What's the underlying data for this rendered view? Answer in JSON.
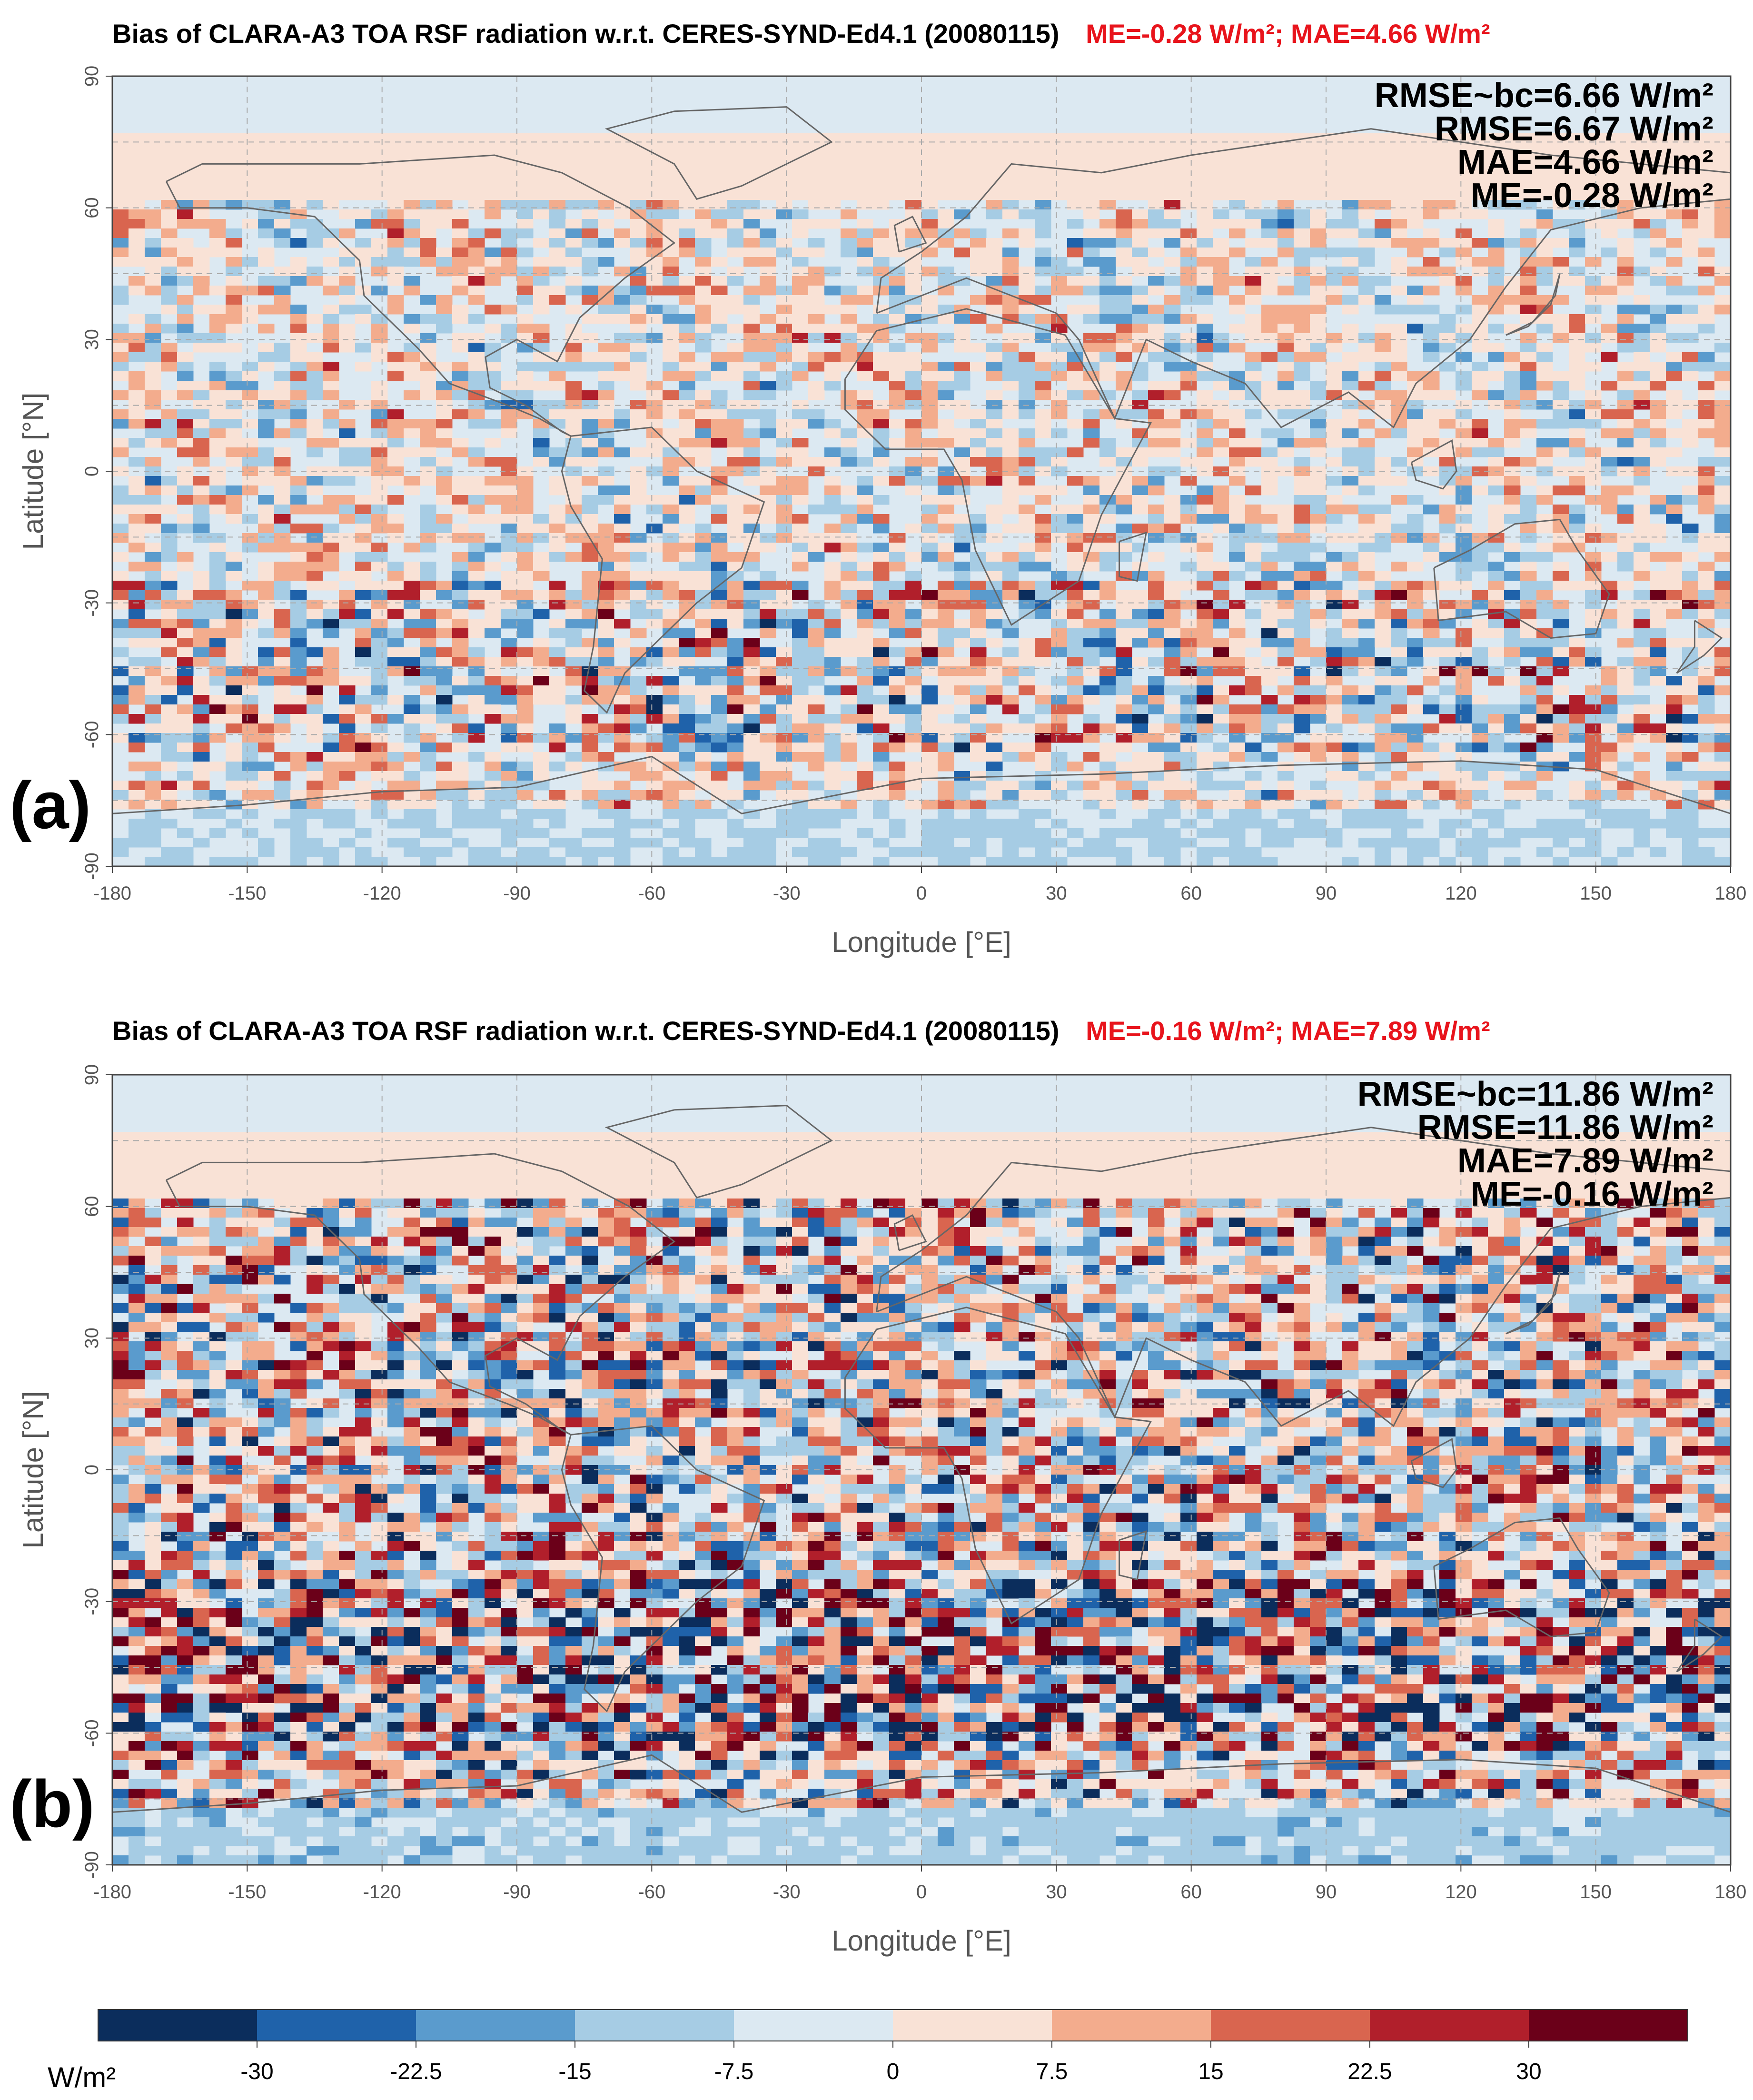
{
  "colors": {
    "scale": [
      "#0b2d5c",
      "#1f62aa",
      "#5a9bcd",
      "#a6cce4",
      "#dce9f2",
      "#f9e2d6",
      "#f3ac8d",
      "#d9654f",
      "#b11f2b",
      "#6b0019"
    ],
    "land_outline": "#666666",
    "grid": "#aaaaaa",
    "highlight_text": "#e8141c"
  },
  "panels": [
    {
      "letter": "(a)",
      "title_main": "Bias of CLARA-A3 TOA RSF radiation w.r.t. CERES-SYND-Ed4.1 (20080115)",
      "title_stats": "ME=-0.28 W/m²; MAE=4.66 W/m²",
      "stats": [
        "RMSE~bc=6.66 W/m²",
        "RMSE=6.67 W/m²",
        "MAE=4.66 W/m²",
        "ME=-0.28 W/m²"
      ],
      "xlabel": "Longitude [°E]",
      "ylabel": "Latitude [°N]"
    },
    {
      "letter": "(b)",
      "title_main": "Bias of CLARA-A3 TOA RSF radiation w.r.t. CERES-SYND-Ed4.1 (20080115)",
      "title_stats": "ME=-0.16 W/m²; MAE=7.89 W/m²",
      "stats": [
        "RMSE~bc=11.86 W/m²",
        "RMSE=11.86 W/m²",
        "MAE=7.89 W/m²",
        "ME=-0.16 W/m²"
      ],
      "xlabel": "Longitude [°E]",
      "ylabel": "Latitude [°N]"
    }
  ],
  "x_ticks": [
    "-180",
    "-150",
    "-120",
    "-90",
    "-60",
    "-30",
    "0",
    "30",
    "60",
    "90",
    "120",
    "150",
    "180"
  ],
  "y_ticks": [
    "90",
    "60",
    "30",
    "0",
    "-30",
    "-60",
    "-90"
  ],
  "colorbar": {
    "unit": "W/m²",
    "ticks": [
      "-30",
      "-22.5",
      "-15",
      "-7.5",
      "0",
      "7.5",
      "15",
      "22.5",
      "30"
    ]
  }
}
